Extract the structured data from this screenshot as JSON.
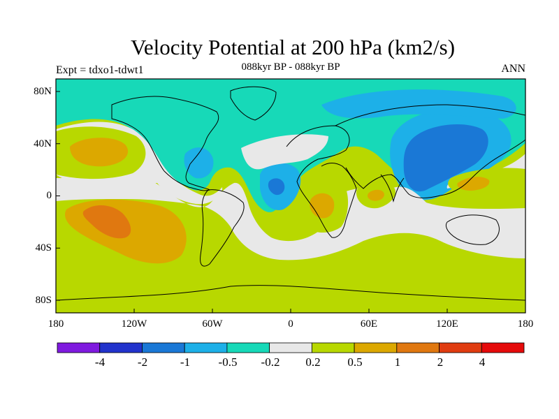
{
  "header": {
    "title": "Velocity Potential at 200 hPa (km2/s)",
    "subtitle": "088kyr BP - 088kyr BP",
    "left_label": "Expt = tdxo1-tdwt1",
    "right_label": "ANN"
  },
  "map": {
    "projection": "cylindrical-equidistant",
    "lon_range": [
      -180,
      180
    ],
    "lat_range": [
      -90,
      90
    ],
    "x_ticks": [
      "180",
      "120W",
      "60W",
      "0",
      "60E",
      "120E",
      "180"
    ],
    "y_ticks": [
      "80N",
      "40N",
      "0",
      "40S",
      "80S"
    ]
  },
  "colorbar": {
    "labels": [
      "-4",
      "-2",
      "-1",
      "-0.5",
      "-0.2",
      "0.2",
      "0.5",
      "1",
      "2",
      "4"
    ],
    "colors": [
      "#7f1adf",
      "#2233cc",
      "#1a78d6",
      "#1db0e8",
      "#17d9b8",
      "#e8e8e8",
      "#b8d800",
      "#dca800",
      "#e07810",
      "#e03c10",
      "#e50a0a"
    ]
  }
}
